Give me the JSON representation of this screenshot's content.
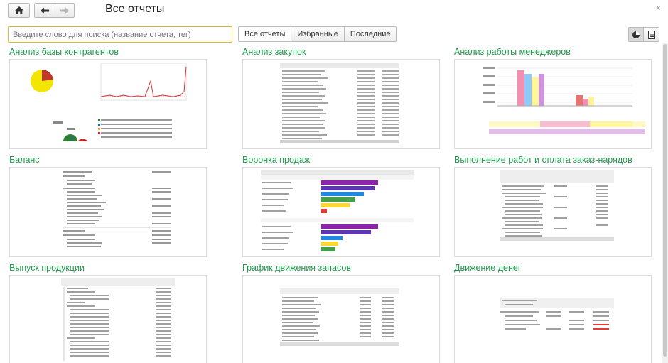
{
  "window": {
    "title": "Все отчеты",
    "close_glyph": "×"
  },
  "nav": {
    "home": "home-icon",
    "back": "arrow-left-icon",
    "forward": "arrow-right-icon"
  },
  "search": {
    "placeholder": "Введите слово для поиска (название отчета, тег)",
    "value": ""
  },
  "tabs": [
    {
      "label": "Все отчеты",
      "active": true
    },
    {
      "label": "Избранные",
      "active": false
    },
    {
      "label": "Последние",
      "active": false
    }
  ],
  "view_buttons": [
    "chart-view-icon",
    "list-view-icon"
  ],
  "reports": [
    {
      "title": "Анализ базы контрагентов"
    },
    {
      "title": "Анализ закупок"
    },
    {
      "title": "Анализ работы менеджеров"
    },
    {
      "title": "Баланс"
    },
    {
      "title": "Воронка продаж"
    },
    {
      "title": "Выполнение работ и оплата заказ-нарядов"
    },
    {
      "title": "Выпуск продукции"
    },
    {
      "title": "График движения запасов"
    },
    {
      "title": "Движение денег"
    }
  ],
  "colors": {
    "accent_green": "#1e9a4a",
    "search_border": "#e6b42e"
  }
}
